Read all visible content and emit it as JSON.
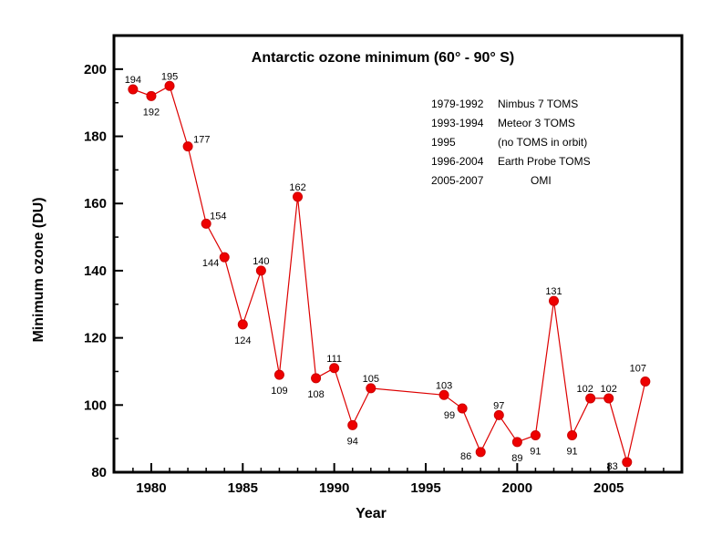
{
  "chart_data": {
    "type": "line",
    "title": "Antarctic ozone minimum (60° - 90° S)",
    "xlabel": "Year",
    "ylabel": "Minimum ozone (DU)",
    "xlim": [
      1979,
      2009
    ],
    "ylim": [
      80,
      210
    ],
    "xticks": [
      1980,
      1985,
      1990,
      1995,
      2000,
      2005
    ],
    "yticks": [
      80,
      100,
      120,
      140,
      160,
      180,
      200
    ],
    "grid": false,
    "series": [
      {
        "color": "#dd0000",
        "points": [
          {
            "x": 1979,
            "y": 194,
            "label": "194"
          },
          {
            "x": 1980,
            "y": 192,
            "label": "192"
          },
          {
            "x": 1981,
            "y": 195,
            "label": "195"
          },
          {
            "x": 1982,
            "y": 177,
            "label": "177"
          },
          {
            "x": 1983,
            "y": 154,
            "label": "154"
          },
          {
            "x": 1984,
            "y": 144,
            "label": "144"
          },
          {
            "x": 1985,
            "y": 124,
            "label": "124"
          },
          {
            "x": 1986,
            "y": 140,
            "label": "140"
          },
          {
            "x": 1987,
            "y": 109,
            "label": "109"
          },
          {
            "x": 1988,
            "y": 162,
            "label": "162"
          },
          {
            "x": 1989,
            "y": 108,
            "label": "108"
          },
          {
            "x": 1990,
            "y": 111,
            "label": "111"
          },
          {
            "x": 1991,
            "y": 94,
            "label": "94"
          },
          {
            "x": 1992,
            "y": 105,
            "label": "105"
          },
          {
            "x": 1996,
            "y": 103,
            "label": "103"
          },
          {
            "x": 1997,
            "y": 99,
            "label": "99"
          },
          {
            "x": 1998,
            "y": 86,
            "label": "86"
          },
          {
            "x": 1999,
            "y": 97,
            "label": "97"
          },
          {
            "x": 2000,
            "y": 89,
            "label": "89"
          },
          {
            "x": 2001,
            "y": 91,
            "label": "91"
          },
          {
            "x": 2002,
            "y": 131,
            "label": "131"
          },
          {
            "x": 2003,
            "y": 91,
            "label": "91"
          },
          {
            "x": 2004,
            "y": 102,
            "label": "102"
          },
          {
            "x": 2005,
            "y": 102,
            "label": "102"
          },
          {
            "x": 2006,
            "y": 83,
            "label": "83"
          },
          {
            "x": 2007,
            "y": 107,
            "label": "107"
          }
        ]
      }
    ],
    "annotations": [
      {
        "period": "1979-1992",
        "instrument": "Nimbus 7 TOMS"
      },
      {
        "period": "1993-1994",
        "instrument": "Meteor 3 TOMS"
      },
      {
        "period": "1995",
        "instrument": "(no TOMS in orbit)"
      },
      {
        "period": "1996-2004",
        "instrument": "Earth Probe TOMS"
      },
      {
        "period": "2005-2007",
        "instrument": "OMI"
      }
    ]
  }
}
